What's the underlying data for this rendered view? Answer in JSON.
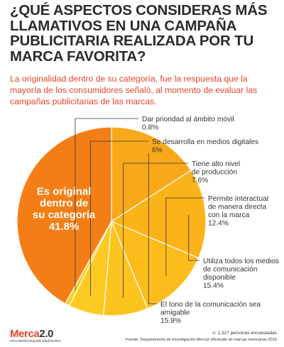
{
  "title": "¿QUÉ ASPECTOS CONSIDERAS MÁS LLAMATIVOS EN UNA CAMPAÑA PUBLICITARIA REALIZADA POR TU MARCA FAVORITA?",
  "subtitle": "La originalidad dentro de su categoría, fue la respuesta que la mayoría de los consumidores señaló, al momento de evaluar las campañas publicitarias de las marcas.",
  "chart_data": {
    "type": "pie",
    "slices": [
      {
        "lines": [
          "Es original",
          "dentro de",
          "su categoría"
        ],
        "value_text": "41.8%",
        "value": 41.8,
        "color": "#f47e16"
      },
      {
        "lines": [
          "El tono de la comunicación sea",
          "amigable"
        ],
        "value_text": "15.9%",
        "value": 15.9,
        "color": "#f9a81a"
      },
      {
        "lines": [
          "Utiliza todos los medios",
          "de comunicación",
          "disponible"
        ],
        "value_text": "15.4%",
        "value": 15.4,
        "color": "#fbb31a"
      },
      {
        "lines": [
          "Permite interactuar",
          "de manera directa",
          "con la marca"
        ],
        "value_text": "12.4%",
        "value": 12.4,
        "color": "#fcbd1c"
      },
      {
        "lines": [
          "Tiene alto nivel",
          "de producción"
        ],
        "value_text": "7.6%",
        "value": 7.6,
        "color": "#fcc41f"
      },
      {
        "lines": [
          "Se desarrolla en medios digitales"
        ],
        "value_text": "6%",
        "value": 6,
        "color": "#fdca23"
      },
      {
        "lines": [
          "Dar prioridad al ámbito móvil"
        ],
        "value_text": "0.8%",
        "value": 0.8,
        "color": "#fdd026"
      }
    ]
  },
  "footnote": {
    "sample": "n: 1,327 personas encuestadas",
    "source": "Fuente: Departamento de Investigación Merca2.0/Estudio de marcas mexicanas 2016"
  },
  "logo": {
    "brand_a": "Merca",
    "brand_b": "2.0",
    "tagline": "mercadotecniapublicidadmedios"
  },
  "colors": {
    "accent": "#e8452b",
    "title": "#2b2b2b"
  }
}
